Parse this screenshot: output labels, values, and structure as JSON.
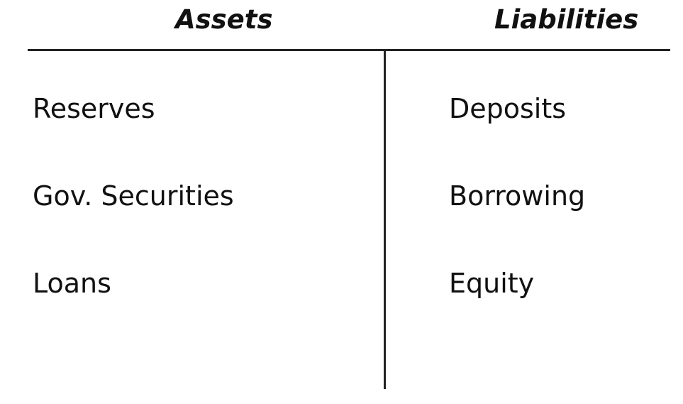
{
  "t_account": {
    "assets": {
      "heading": "Assets",
      "items": [
        {
          "label": "Reserves"
        },
        {
          "label": "Gov. Securities"
        },
        {
          "label": "Loans"
        }
      ]
    },
    "liabilities": {
      "heading": "Liabilities",
      "items": [
        {
          "label": "Deposits"
        },
        {
          "label": "Borrowing"
        },
        {
          "label": "Equity"
        }
      ]
    },
    "colors": {
      "text": "#111111",
      "rule": "#222222",
      "background": "#ffffff"
    }
  }
}
